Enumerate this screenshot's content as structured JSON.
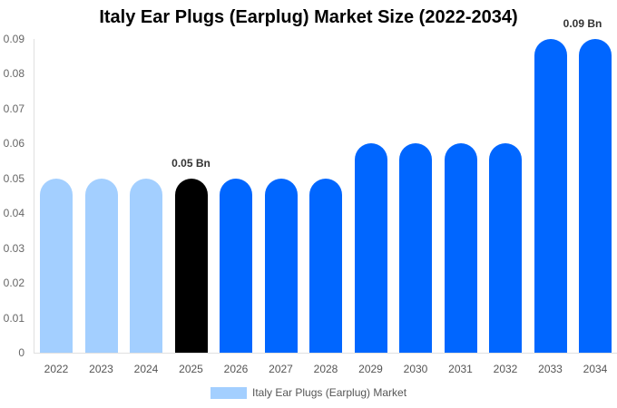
{
  "chart_data": {
    "type": "bar",
    "title": "Italy Ear Plugs (Earplug) Market Size (2022-2034)",
    "xlabel": "",
    "ylabel": "",
    "ylim": [
      0,
      0.09
    ],
    "yticks": [
      "0",
      "0.01",
      "0.02",
      "0.03",
      "0.04",
      "0.05",
      "0.06",
      "0.07",
      "0.08",
      "0.09"
    ],
    "categories": [
      "2022",
      "2023",
      "2024",
      "2025",
      "2026",
      "2027",
      "2028",
      "2029",
      "2030",
      "2031",
      "2032",
      "2033",
      "2034"
    ],
    "series": [
      {
        "name": "Italy Ear Plugs (Earplug) Market",
        "values": [
          0.05,
          0.05,
          0.05,
          0.05,
          0.05,
          0.05,
          0.05,
          0.06,
          0.06,
          0.06,
          0.06,
          0.09,
          0.09
        ]
      }
    ],
    "bar_colors": [
      "#a3cfff",
      "#a3cfff",
      "#a3cfff",
      "#000000",
      "#0066ff",
      "#0066ff",
      "#0066ff",
      "#0066ff",
      "#0066ff",
      "#0066ff",
      "#0066ff",
      "#0066ff",
      "#0066ff"
    ],
    "annotations": [
      {
        "category": "2025",
        "text": "0.05 Bn"
      },
      {
        "category": "2034",
        "text": "0.09 Bn"
      }
    ],
    "legend": {
      "position": "bottom",
      "label": "Italy Ear Plugs (Earplug) Market",
      "color": "#a3cfff"
    },
    "grid": false
  }
}
